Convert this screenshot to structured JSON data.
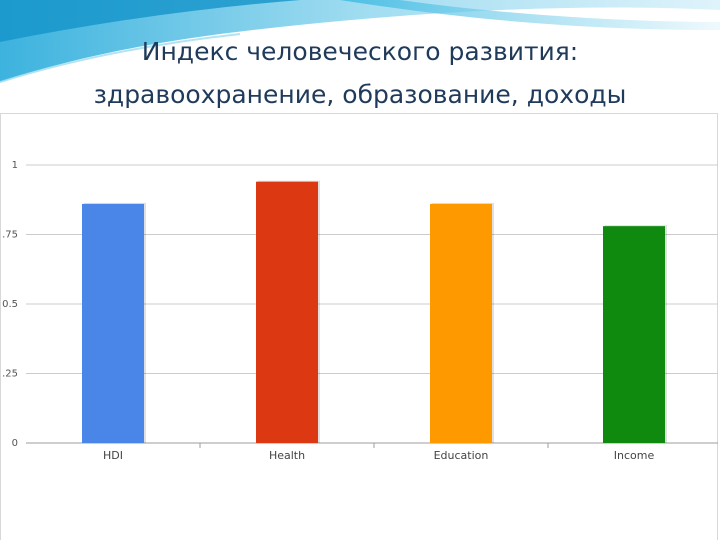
{
  "title": {
    "line1": "Индекс человеческого развития:",
    "line2": "здравоохранение, образование, доходы"
  },
  "chart_data": {
    "type": "bar",
    "title": "",
    "xlabel": "",
    "ylabel": "",
    "ylim": [
      0,
      1
    ],
    "yticks": [
      "0",
      ".25",
      "0.5",
      ".75",
      "1"
    ],
    "ytick_values": [
      0,
      0.25,
      0.5,
      0.75,
      1
    ],
    "grid": true,
    "legend": "none",
    "categories": [
      "HDI",
      "Health",
      "Education",
      "Income"
    ],
    "values": [
      0.86,
      0.94,
      0.86,
      0.78
    ],
    "colors": [
      "#4a86e8",
      "#dc3912",
      "#ff9900",
      "#0f8a0f"
    ]
  }
}
